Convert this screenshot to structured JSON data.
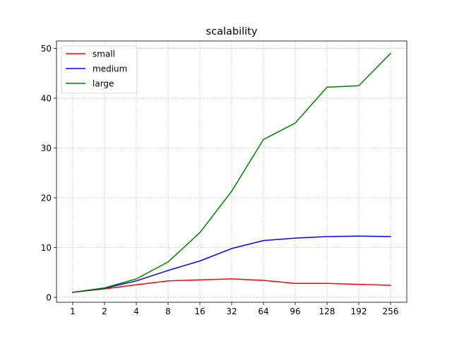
{
  "chart_data": {
    "type": "line",
    "title": "scalability",
    "xlabel": "",
    "ylabel": "",
    "categories": [
      "1",
      "2",
      "4",
      "8",
      "16",
      "32",
      "64",
      "96",
      "128",
      "192",
      "256"
    ],
    "ylim": [
      -1.0,
      51.5
    ],
    "yticks": [
      0,
      10,
      20,
      30,
      40,
      50
    ],
    "grid": true,
    "legend_position": "top-left",
    "series": [
      {
        "name": "small",
        "color": "#ff0000",
        "values": [
          1.0,
          1.7,
          2.5,
          3.3,
          3.5,
          3.7,
          3.4,
          2.8,
          2.8,
          2.6,
          2.4
        ]
      },
      {
        "name": "medium",
        "color": "#0000ff",
        "values": [
          1.0,
          1.8,
          3.3,
          5.4,
          7.3,
          9.8,
          11.4,
          11.9,
          12.2,
          12.3,
          12.2
        ]
      },
      {
        "name": "large",
        "color": "#008000",
        "values": [
          1.0,
          1.9,
          3.7,
          7.1,
          13.0,
          21.3,
          31.7,
          35.0,
          42.2,
          42.5,
          49.0
        ]
      }
    ]
  }
}
